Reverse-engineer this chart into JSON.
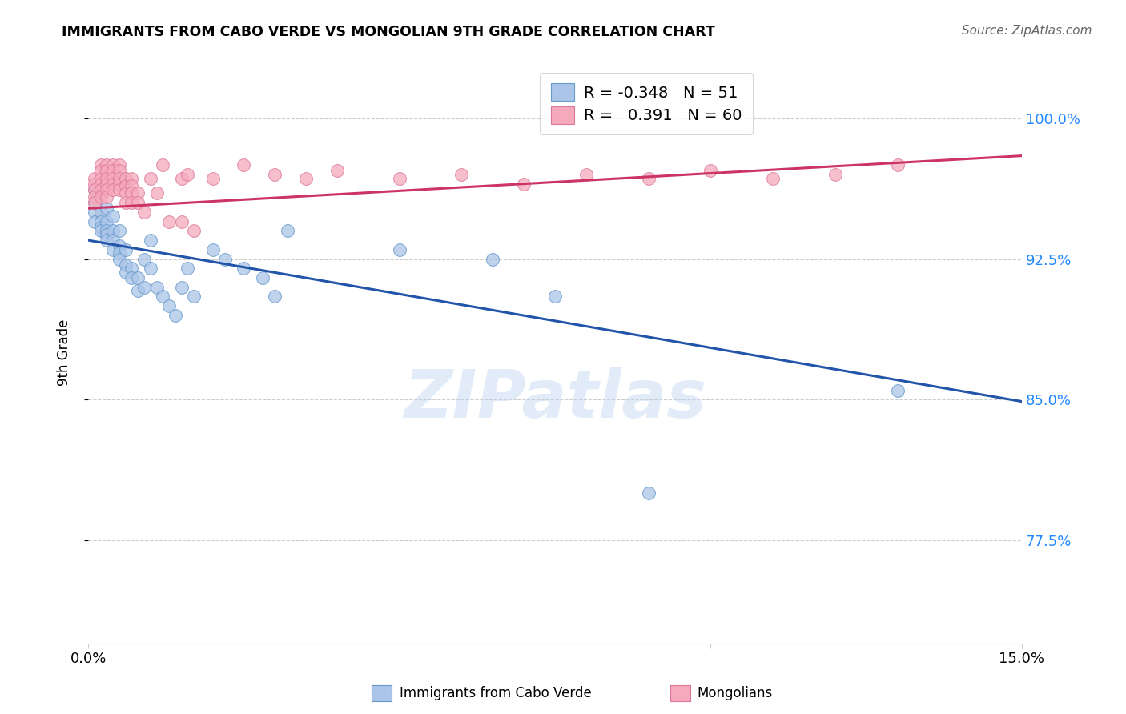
{
  "title": "IMMIGRANTS FROM CABO VERDE VS MONGOLIAN 9TH GRADE CORRELATION CHART",
  "source": "Source: ZipAtlas.com",
  "ylabel": "9th Grade",
  "ytick_vals": [
    0.775,
    0.85,
    0.925,
    1.0
  ],
  "ytick_labels": [
    "77.5%",
    "85.0%",
    "92.5%",
    "100.0%"
  ],
  "xlim": [
    0.0,
    0.15
  ],
  "ylim": [
    0.72,
    1.03
  ],
  "legend_blue_r": "-0.348",
  "legend_blue_n": "51",
  "legend_pink_r": "0.391",
  "legend_pink_n": "60",
  "legend_label_blue": "Immigrants from Cabo Verde",
  "legend_label_pink": "Mongolians",
  "watermark": "ZIPatlas",
  "blue_scatter_color": "#aac5e8",
  "blue_edge_color": "#6699cc",
  "blue_line_color": "#2255aa",
  "pink_scatter_color": "#f5aabc",
  "pink_edge_color": "#dd7799",
  "pink_line_color": "#cc3366",
  "blue_line_x0": 0.0,
  "blue_line_y0": 0.935,
  "blue_line_x1": 0.15,
  "blue_line_y1": 0.849,
  "pink_line_x0": 0.0,
  "pink_line_y0": 0.952,
  "pink_line_x1": 0.15,
  "pink_line_y1": 0.98,
  "blue_points_x": [
    0.001,
    0.001,
    0.001,
    0.001,
    0.002,
    0.002,
    0.002,
    0.002,
    0.002,
    0.003,
    0.003,
    0.003,
    0.003,
    0.003,
    0.004,
    0.004,
    0.004,
    0.004,
    0.005,
    0.005,
    0.005,
    0.005,
    0.006,
    0.006,
    0.006,
    0.007,
    0.007,
    0.008,
    0.008,
    0.009,
    0.009,
    0.01,
    0.01,
    0.011,
    0.012,
    0.013,
    0.014,
    0.015,
    0.016,
    0.017,
    0.02,
    0.022,
    0.025,
    0.028,
    0.03,
    0.032,
    0.05,
    0.065,
    0.075,
    0.09,
    0.13
  ],
  "blue_points_y": [
    0.962,
    0.955,
    0.95,
    0.945,
    0.96,
    0.95,
    0.945,
    0.942,
    0.94,
    0.952,
    0.945,
    0.94,
    0.938,
    0.935,
    0.948,
    0.94,
    0.935,
    0.93,
    0.94,
    0.932,
    0.928,
    0.925,
    0.93,
    0.922,
    0.918,
    0.92,
    0.915,
    0.915,
    0.908,
    0.925,
    0.91,
    0.935,
    0.92,
    0.91,
    0.905,
    0.9,
    0.895,
    0.91,
    0.92,
    0.905,
    0.93,
    0.925,
    0.92,
    0.915,
    0.905,
    0.94,
    0.93,
    0.925,
    0.905,
    0.8,
    0.855
  ],
  "pink_points_x": [
    0.001,
    0.001,
    0.001,
    0.001,
    0.001,
    0.002,
    0.002,
    0.002,
    0.002,
    0.002,
    0.002,
    0.003,
    0.003,
    0.003,
    0.003,
    0.003,
    0.003,
    0.004,
    0.004,
    0.004,
    0.004,
    0.004,
    0.005,
    0.005,
    0.005,
    0.005,
    0.005,
    0.006,
    0.006,
    0.006,
    0.006,
    0.007,
    0.007,
    0.007,
    0.007,
    0.008,
    0.008,
    0.009,
    0.01,
    0.011,
    0.012,
    0.013,
    0.015,
    0.015,
    0.016,
    0.017,
    0.02,
    0.025,
    0.03,
    0.035,
    0.04,
    0.05,
    0.06,
    0.07,
    0.08,
    0.09,
    0.1,
    0.11,
    0.12,
    0.13
  ],
  "pink_points_y": [
    0.968,
    0.965,
    0.962,
    0.958,
    0.955,
    0.975,
    0.972,
    0.968,
    0.965,
    0.962,
    0.958,
    0.975,
    0.972,
    0.968,
    0.965,
    0.962,
    0.958,
    0.975,
    0.972,
    0.968,
    0.965,
    0.962,
    0.975,
    0.972,
    0.968,
    0.965,
    0.962,
    0.968,
    0.964,
    0.96,
    0.955,
    0.968,
    0.964,
    0.96,
    0.955,
    0.96,
    0.955,
    0.95,
    0.968,
    0.96,
    0.975,
    0.945,
    0.968,
    0.945,
    0.97,
    0.94,
    0.968,
    0.975,
    0.97,
    0.968,
    0.972,
    0.968,
    0.97,
    0.965,
    0.97,
    0.968,
    0.972,
    0.968,
    0.97,
    0.975
  ]
}
